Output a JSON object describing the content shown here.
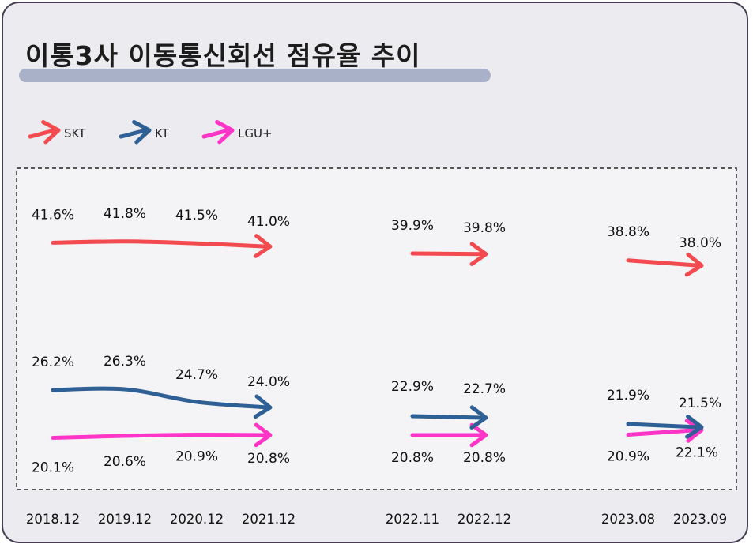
{
  "title": "이통3사 이동통신회선 점유율 추이",
  "chart_data": {
    "type": "line",
    "title": "이통3사 이동통신회선 점유율 추이",
    "categories": [
      "2018.12",
      "2019.12",
      "2020.12",
      "2021.12",
      "2022.11",
      "2022.12",
      "2023.08",
      "2023.09"
    ],
    "segments": [
      [
        0,
        1,
        2,
        3
      ],
      [
        4,
        5
      ],
      [
        6,
        7
      ]
    ],
    "legend_position": "top-left",
    "grid": false,
    "series": [
      {
        "name": "SKT",
        "color": "#f24a4f",
        "values": [
          41.6,
          41.8,
          41.5,
          41.0,
          39.9,
          39.8,
          38.8,
          38.0
        ],
        "labels": [
          "41.6%",
          "41.8%",
          "41.5%",
          "41.0%",
          "39.9%",
          "39.8%",
          "38.8%",
          "38.0%"
        ]
      },
      {
        "name": "KT",
        "color": "#2e6096",
        "values": [
          26.2,
          26.3,
          24.7,
          24.0,
          22.9,
          22.7,
          21.9,
          21.5
        ],
        "labels": [
          "26.2%",
          "26.3%",
          "24.7%",
          "24.0%",
          "22.9%",
          "22.7%",
          "21.9%",
          "21.5%"
        ]
      },
      {
        "name": "LGU+",
        "color": "#ff35c7",
        "values": [
          20.1,
          20.6,
          20.9,
          20.8,
          20.8,
          20.8,
          20.9,
          22.1
        ],
        "labels": [
          "20.1%",
          "20.6%",
          "20.9%",
          "20.8%",
          "20.8%",
          "20.8%",
          "20.9%",
          "22.1%"
        ]
      }
    ]
  }
}
